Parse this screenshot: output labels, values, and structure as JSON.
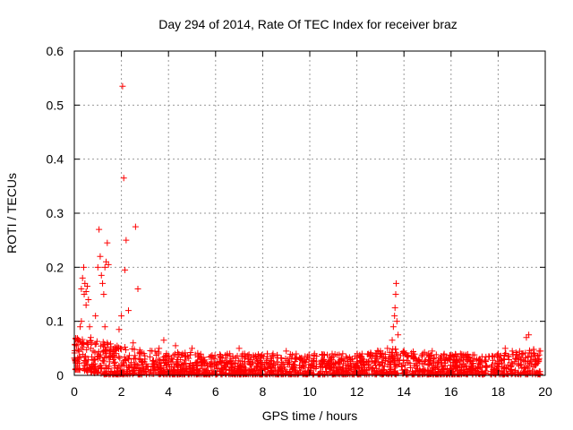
{
  "chart_data": {
    "type": "scatter",
    "title": "Day 294 of 2014, Rate Of TEC Index for receiver braz",
    "xlabel": "GPS time / hours",
    "ylabel": "ROTI / TECUs",
    "xlim": [
      0,
      20
    ],
    "ylim": [
      0,
      0.6
    ],
    "xticks": [
      "0",
      "2",
      "4",
      "6",
      "8",
      "10",
      "12",
      "14",
      "16",
      "18",
      "20"
    ],
    "yticks": [
      "0",
      "0.1",
      "0.2",
      "0.3",
      "0.4",
      "0.5",
      "0.6"
    ],
    "grid": true,
    "marker": "+",
    "color": "#ff0000",
    "series": [
      {
        "name": "ROTI",
        "points": [
          [
            0.1,
            0.055
          ],
          [
            0.15,
            0.065
          ],
          [
            0.2,
            0.045
          ],
          [
            0.25,
            0.09
          ],
          [
            0.3,
            0.1
          ],
          [
            0.3,
            0.16
          ],
          [
            0.35,
            0.18
          ],
          [
            0.4,
            0.2
          ],
          [
            0.42,
            0.15
          ],
          [
            0.45,
            0.17
          ],
          [
            0.5,
            0.13
          ],
          [
            0.5,
            0.155
          ],
          [
            0.55,
            0.165
          ],
          [
            0.6,
            0.14
          ],
          [
            0.65,
            0.09
          ],
          [
            0.7,
            0.07
          ],
          [
            0.75,
            0.06
          ],
          [
            0.8,
            0.045
          ],
          [
            0.9,
            0.11
          ],
          [
            1.0,
            0.2
          ],
          [
            1.05,
            0.27
          ],
          [
            1.1,
            0.22
          ],
          [
            1.15,
            0.185
          ],
          [
            1.2,
            0.17
          ],
          [
            1.25,
            0.15
          ],
          [
            1.3,
            0.2
          ],
          [
            1.35,
            0.21
          ],
          [
            1.4,
            0.245
          ],
          [
            1.45,
            0.205
          ],
          [
            1.3,
            0.09
          ],
          [
            1.4,
            0.06
          ],
          [
            1.6,
            0.04
          ],
          [
            1.8,
            0.05
          ],
          [
            1.9,
            0.085
          ],
          [
            2.0,
            0.11
          ],
          [
            2.05,
            0.535
          ],
          [
            2.1,
            0.365
          ],
          [
            2.15,
            0.195
          ],
          [
            2.2,
            0.25
          ],
          [
            2.3,
            0.12
          ],
          [
            2.5,
            0.06
          ],
          [
            2.6,
            0.275
          ],
          [
            2.7,
            0.16
          ],
          [
            2.8,
            0.04
          ],
          [
            3.0,
            0.03
          ],
          [
            3.3,
            0.045
          ],
          [
            3.6,
            0.05
          ],
          [
            3.8,
            0.065
          ],
          [
            4.0,
            0.035
          ],
          [
            4.3,
            0.055
          ],
          [
            4.6,
            0.04
          ],
          [
            5.0,
            0.05
          ],
          [
            5.4,
            0.03
          ],
          [
            5.8,
            0.035
          ],
          [
            6.2,
            0.025
          ],
          [
            6.6,
            0.04
          ],
          [
            7.0,
            0.05
          ],
          [
            7.4,
            0.03
          ],
          [
            7.8,
            0.035
          ],
          [
            8.2,
            0.04
          ],
          [
            8.6,
            0.025
          ],
          [
            9.0,
            0.045
          ],
          [
            9.4,
            0.03
          ],
          [
            9.8,
            0.035
          ],
          [
            10.2,
            0.04
          ],
          [
            10.6,
            0.025
          ],
          [
            11.0,
            0.035
          ],
          [
            11.4,
            0.04
          ],
          [
            11.8,
            0.03
          ],
          [
            12.2,
            0.035
          ],
          [
            12.6,
            0.04
          ],
          [
            13.0,
            0.045
          ],
          [
            13.3,
            0.05
          ],
          [
            13.5,
            0.065
          ],
          [
            13.55,
            0.09
          ],
          [
            13.6,
            0.11
          ],
          [
            13.62,
            0.125
          ],
          [
            13.65,
            0.15
          ],
          [
            13.67,
            0.17
          ],
          [
            13.7,
            0.1
          ],
          [
            13.75,
            0.075
          ],
          [
            14.0,
            0.045
          ],
          [
            14.4,
            0.035
          ],
          [
            14.8,
            0.04
          ],
          [
            15.2,
            0.045
          ],
          [
            15.6,
            0.03
          ],
          [
            16.0,
            0.035
          ],
          [
            16.4,
            0.04
          ],
          [
            16.8,
            0.025
          ],
          [
            17.2,
            0.03
          ],
          [
            17.6,
            0.035
          ],
          [
            18.0,
            0.04
          ],
          [
            18.3,
            0.05
          ],
          [
            18.6,
            0.045
          ],
          [
            18.9,
            0.035
          ],
          [
            19.2,
            0.07
          ],
          [
            19.3,
            0.075
          ],
          [
            19.5,
            0.04
          ],
          [
            19.7,
            0.025
          ],
          [
            19.8,
            0.045
          ]
        ],
        "baseline_density": [
          [
            0,
            0.01,
            0.07
          ],
          [
            1.5,
            0.0,
            0.06
          ],
          [
            2.5,
            0.0,
            0.05
          ],
          [
            4,
            0.0,
            0.045
          ],
          [
            6,
            0.0,
            0.04
          ],
          [
            8,
            0.0,
            0.04
          ],
          [
            10,
            0.0,
            0.04
          ],
          [
            12,
            0.0,
            0.04
          ],
          [
            13.5,
            0.0,
            0.05
          ],
          [
            14,
            0.0,
            0.045
          ],
          [
            16,
            0.0,
            0.04
          ],
          [
            18,
            0.0,
            0.04
          ],
          [
            19.8,
            0.0,
            0.05
          ]
        ]
      }
    ]
  }
}
